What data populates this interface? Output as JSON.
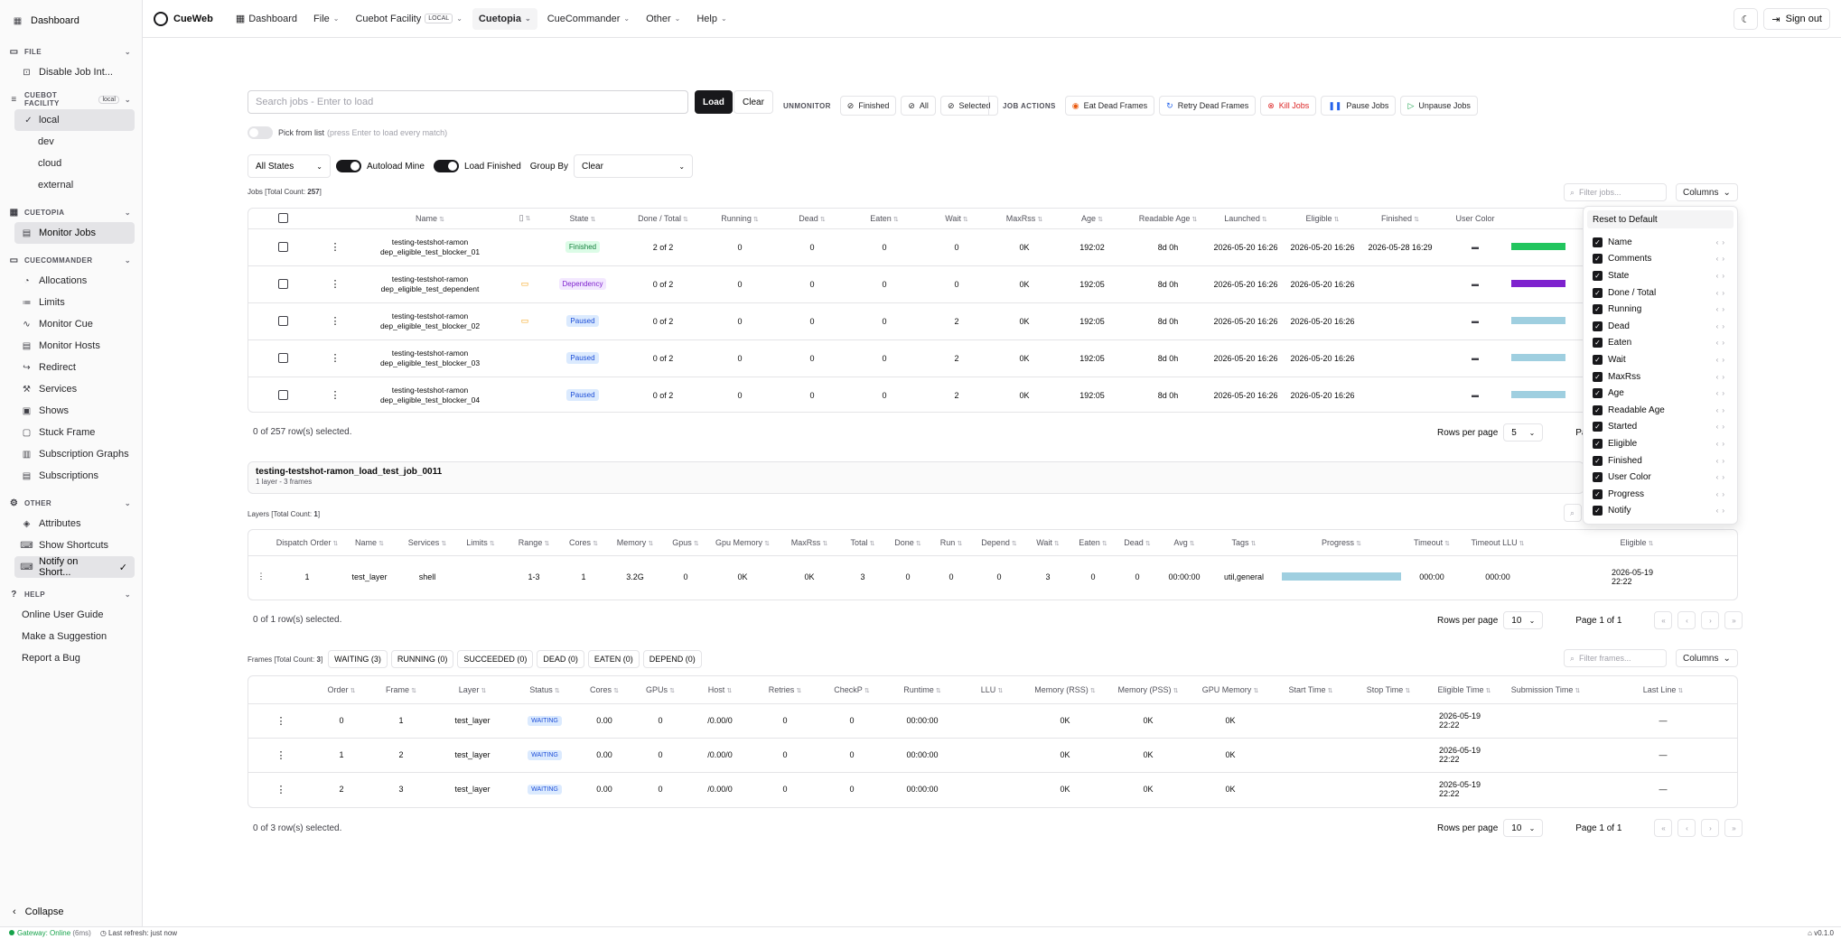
{
  "sidebar": {
    "dashboard": "Dashboard",
    "file_group": "FILE",
    "file_items": [
      "Disable Job Int..."
    ],
    "facility_group": "CUEBOT FACILITY",
    "facility_badge": "local",
    "facility_items": [
      "local",
      "dev",
      "cloud",
      "external"
    ],
    "cuetopia_group": "CUETOPIA",
    "cuetopia_items": [
      "Monitor Jobs"
    ],
    "cuecommander_group": "CUECOMMANDER",
    "cuecommander_items": [
      "Allocations",
      "Limits",
      "Monitor Cue",
      "Monitor Hosts",
      "Redirect",
      "Services",
      "Shows",
      "Stuck Frame",
      "Subscription Graphs",
      "Subscriptions"
    ],
    "other_group": "OTHER",
    "other_items": [
      "Attributes",
      "Show Shortcuts",
      "Notify on Short..."
    ],
    "help_group": "HELP",
    "help_items": [
      "Online User Guide",
      "Make a Suggestion",
      "Report a Bug"
    ],
    "collapse": "Collapse"
  },
  "topbar": {
    "logo": "CueWeb",
    "nav": [
      "Dashboard",
      "File",
      "Cuebot Facility",
      "Cuetopia",
      "CueCommander",
      "Other",
      "Help"
    ],
    "facility_badge": "LOCAL",
    "signout": "Sign out"
  },
  "controls": {
    "search_placeholder": "Search jobs - Enter to load",
    "load": "Load",
    "clear": "Clear",
    "unmonitor_label": "UNMONITOR",
    "unmonitor_buttons": [
      "Finished",
      "All",
      "Selected"
    ],
    "job_actions_label": "JOB ACTIONS",
    "job_actions": [
      "Eat Dead Frames",
      "Retry Dead Frames",
      "Kill Jobs",
      "Pause Jobs",
      "Unpause Jobs"
    ],
    "pick_from_list": "Pick from list",
    "pick_hint": "(press Enter to load every match)",
    "states_select": "All States",
    "autoload": "Autoload Mine",
    "load_finished": "Load Finished",
    "group_by": "Group By",
    "group_by_value": "Clear"
  },
  "jobs": {
    "count_label": "Jobs [Total Count: ",
    "count": "257",
    "count_end": "]",
    "filter_placeholder": "Filter jobs...",
    "columns_btn": "Columns",
    "headers": [
      "Name",
      "",
      "State",
      "Done / Total",
      "Running",
      "Dead",
      "Eaten",
      "Wait",
      "MaxRss",
      "Age",
      "Readable Age",
      "Launched",
      "Eligible",
      "Finished",
      "User Color"
    ],
    "rows": [
      {
        "name1": "testing-testshot-ramon",
        "name2": "dep_eligible_test_blocker_01",
        "comment": false,
        "state": "Finished",
        "done": "2 of 2",
        "running": "0",
        "dead": "0",
        "eaten": "0",
        "wait": "0",
        "maxrss": "0K",
        "age": "192:02",
        "rage": "8d 0h",
        "launched": "2026-05-20 16:26",
        "eligible": "2026-05-20 16:26",
        "finished": "2026-05-28 16:29",
        "color": "#22c55e"
      },
      {
        "name1": "testing-testshot-ramon",
        "name2": "dep_eligible_test_dependent",
        "comment": true,
        "state": "Dependency",
        "done": "0 of 2",
        "running": "0",
        "dead": "0",
        "eaten": "0",
        "wait": "0",
        "maxrss": "0K",
        "age": "192:05",
        "rage": "8d 0h",
        "launched": "2026-05-20 16:26",
        "eligible": "2026-05-20 16:26",
        "finished": "",
        "color": "#7e22ce"
      },
      {
        "name1": "testing-testshot-ramon",
        "name2": "dep_eligible_test_blocker_02",
        "comment": true,
        "state": "Paused",
        "done": "0 of 2",
        "running": "0",
        "dead": "0",
        "eaten": "0",
        "wait": "2",
        "maxrss": "0K",
        "age": "192:05",
        "rage": "8d 0h",
        "launched": "2026-05-20 16:26",
        "eligible": "2026-05-20 16:26",
        "finished": "",
        "color": "#9fcfe0"
      },
      {
        "name1": "testing-testshot-ramon",
        "name2": "dep_eligible_test_blocker_03",
        "comment": false,
        "state": "Paused",
        "done": "0 of 2",
        "running": "0",
        "dead": "0",
        "eaten": "0",
        "wait": "2",
        "maxrss": "0K",
        "age": "192:05",
        "rage": "8d 0h",
        "launched": "2026-05-20 16:26",
        "eligible": "2026-05-20 16:26",
        "finished": "",
        "color": "#9fcfe0"
      },
      {
        "name1": "testing-testshot-ramon",
        "name2": "dep_eligible_test_blocker_04",
        "comment": false,
        "state": "Paused",
        "done": "0 of 2",
        "running": "0",
        "dead": "0",
        "eaten": "0",
        "wait": "2",
        "maxrss": "0K",
        "age": "192:05",
        "rage": "8d 0h",
        "launched": "2026-05-20 16:26",
        "eligible": "2026-05-20 16:26",
        "finished": "",
        "color": "#9fcfe0"
      }
    ],
    "selected": "0 of 257 row(s) selected.",
    "rows_per_page": "Rows per page",
    "rows_value": "5",
    "page": "Page"
  },
  "column_menu": {
    "reset": "Reset to Default",
    "items": [
      "Name",
      "Comments",
      "State",
      "Done / Total",
      "Running",
      "Dead",
      "Eaten",
      "Wait",
      "MaxRss",
      "Age",
      "Readable Age",
      "Started",
      "Eligible",
      "Finished",
      "User Color",
      "Progress",
      "Notify"
    ]
  },
  "job_detail": {
    "title": "testing-testshot-ramon_load_test_job_0011",
    "subtitle": "1 layer - 3 frames"
  },
  "layers": {
    "count_label": "Layers [Total Count: ",
    "count": "1",
    "count_end": "]",
    "headers": [
      "Dispatch Order",
      "Name",
      "Services",
      "Limits",
      "Range",
      "Cores",
      "Memory",
      "Gpus",
      "Gpu Memory",
      "MaxRss",
      "Total",
      "Done",
      "Run",
      "Depend",
      "Wait",
      "Eaten",
      "Dead",
      "Avg",
      "Tags",
      "Progress",
      "Timeout",
      "Timeout LLU",
      "Eligible"
    ],
    "row": [
      "1",
      "test_layer",
      "shell",
      "",
      "1-3",
      "1",
      "3.2G",
      "0",
      "0K",
      "0K",
      "3",
      "0",
      "0",
      "0",
      "3",
      "0",
      "0",
      "00:00:00",
      "util,general",
      "",
      "000:00",
      "000:00",
      "2026-05-19 22:22"
    ],
    "progress": 0,
    "selected": "0 of 1 row(s) selected.",
    "rows_per_page": "Rows per page",
    "rows_value": "10",
    "page": "Page 1 of 1"
  },
  "frames": {
    "count_label": "Frames [Total Count: ",
    "count": "3",
    "count_end": "]",
    "filters": [
      "WAITING (3)",
      "RUNNING (0)",
      "SUCCEEDED (0)",
      "DEAD (0)",
      "EATEN (0)",
      "DEPEND (0)"
    ],
    "filter_placeholder": "Filter frames...",
    "columns_btn": "Columns",
    "headers": [
      "Order",
      "Frame",
      "Layer",
      "Status",
      "Cores",
      "GPUs",
      "Host",
      "Retries",
      "CheckP",
      "Runtime",
      "LLU",
      "Memory (RSS)",
      "Memory (PSS)",
      "GPU Memory",
      "Start Time",
      "Stop Time",
      "Eligible Time",
      "Submission Time",
      "Last Line"
    ],
    "rows": [
      [
        "0",
        "1",
        "test_layer",
        "WAITING",
        "0.00",
        "0",
        "/0.00/0",
        "0",
        "0",
        "00:00:00",
        "",
        "0K",
        "0K",
        "0K",
        "",
        "",
        "2026-05-19 22:22",
        "",
        "—"
      ],
      [
        "1",
        "2",
        "test_layer",
        "WAITING",
        "0.00",
        "0",
        "/0.00/0",
        "0",
        "0",
        "00:00:00",
        "",
        "0K",
        "0K",
        "0K",
        "",
        "",
        "2026-05-19 22:22",
        "",
        "—"
      ],
      [
        "2",
        "3",
        "test_layer",
        "WAITING",
        "0.00",
        "0",
        "/0.00/0",
        "0",
        "0",
        "00:00:00",
        "",
        "0K",
        "0K",
        "0K",
        "",
        "",
        "2026-05-19 22:22",
        "",
        "—"
      ]
    ],
    "selected": "0 of 3 row(s) selected.",
    "rows_per_page": "Rows per page",
    "rows_value": "10",
    "page": "Page 1 of 1"
  },
  "statusbar": {
    "gateway": "Gateway: Online",
    "latency": "(6ms)",
    "refresh": "Last refresh: just now",
    "version": "v0.1.0"
  }
}
